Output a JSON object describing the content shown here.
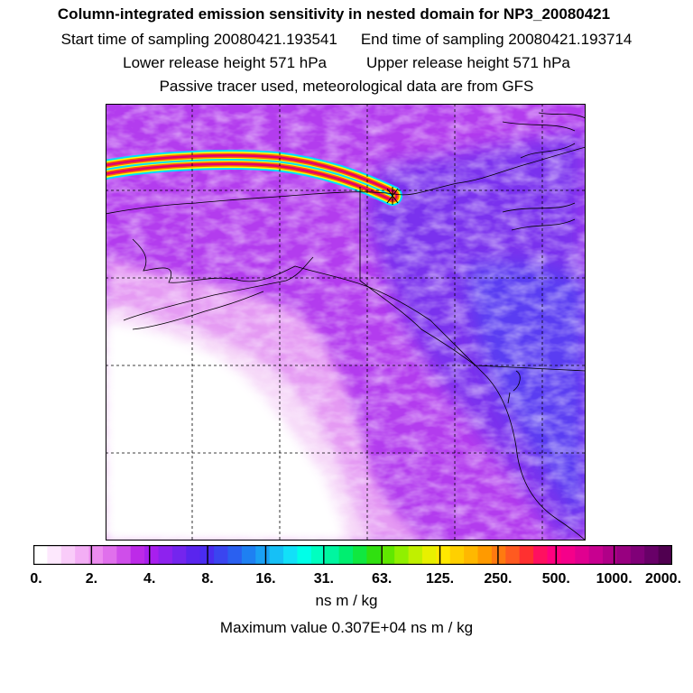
{
  "title": "Column-integrated emission sensitivity in nested domain for NP3_20080421",
  "start_label": "Start time of sampling 20080421.193541",
  "end_label": "End time of sampling 20080421.193714",
  "lower_label": "Lower release height  571 hPa",
  "upper_label": "Upper release height  571 hPa",
  "info_label": "Passive tracer used, meteorological data are from GFS",
  "colorbar": {
    "ticks": [
      "0.",
      "2.",
      "4.",
      "8.",
      "16.",
      "31.",
      "63.",
      "125.",
      "250.",
      "500.",
      "1000.",
      "2000."
    ],
    "colors": [
      "#ffffff",
      "#fde8fd",
      "#f9ccf9",
      "#f3aef5",
      "#ec8cef",
      "#e070ec",
      "#cf4eea",
      "#bd2ae8",
      "#a81fee",
      "#8e22ee",
      "#7425ee",
      "#5a25ee",
      "#4a2cf0",
      "#3a45f0",
      "#2a60f0",
      "#1e80f2",
      "#1aa0f4",
      "#16c0f6",
      "#12e0f8",
      "#00ffe8",
      "#00ffc0",
      "#00f6a0",
      "#00ee70",
      "#10e840",
      "#30e010",
      "#60e800",
      "#90f000",
      "#c0f000",
      "#e8f000",
      "#ffe800",
      "#ffd000",
      "#ffb800",
      "#ff9a00",
      "#ff7a10",
      "#ff5a20",
      "#ff3030",
      "#ff1060",
      "#ff0080",
      "#f5008a",
      "#e00090",
      "#c80090",
      "#b00088",
      "#980080",
      "#800078",
      "#680068",
      "#500050"
    ],
    "units": "ns m / kg",
    "max_label": "Maximum value  0.307E+04 ns m / kg"
  },
  "map": {
    "palette": {
      "white": "#ffffff",
      "light_magenta": "#f0b8f5",
      "magenta": "#cc55ee",
      "purple": "#a020f0",
      "violet": "#7a30f0",
      "blue": "#5050f0"
    },
    "plume_colors": [
      "#00e0ff",
      "#ffff00",
      "#ff6000",
      "#e0006a",
      "#ff6000",
      "#ffff00",
      "#00e0ff"
    ]
  }
}
